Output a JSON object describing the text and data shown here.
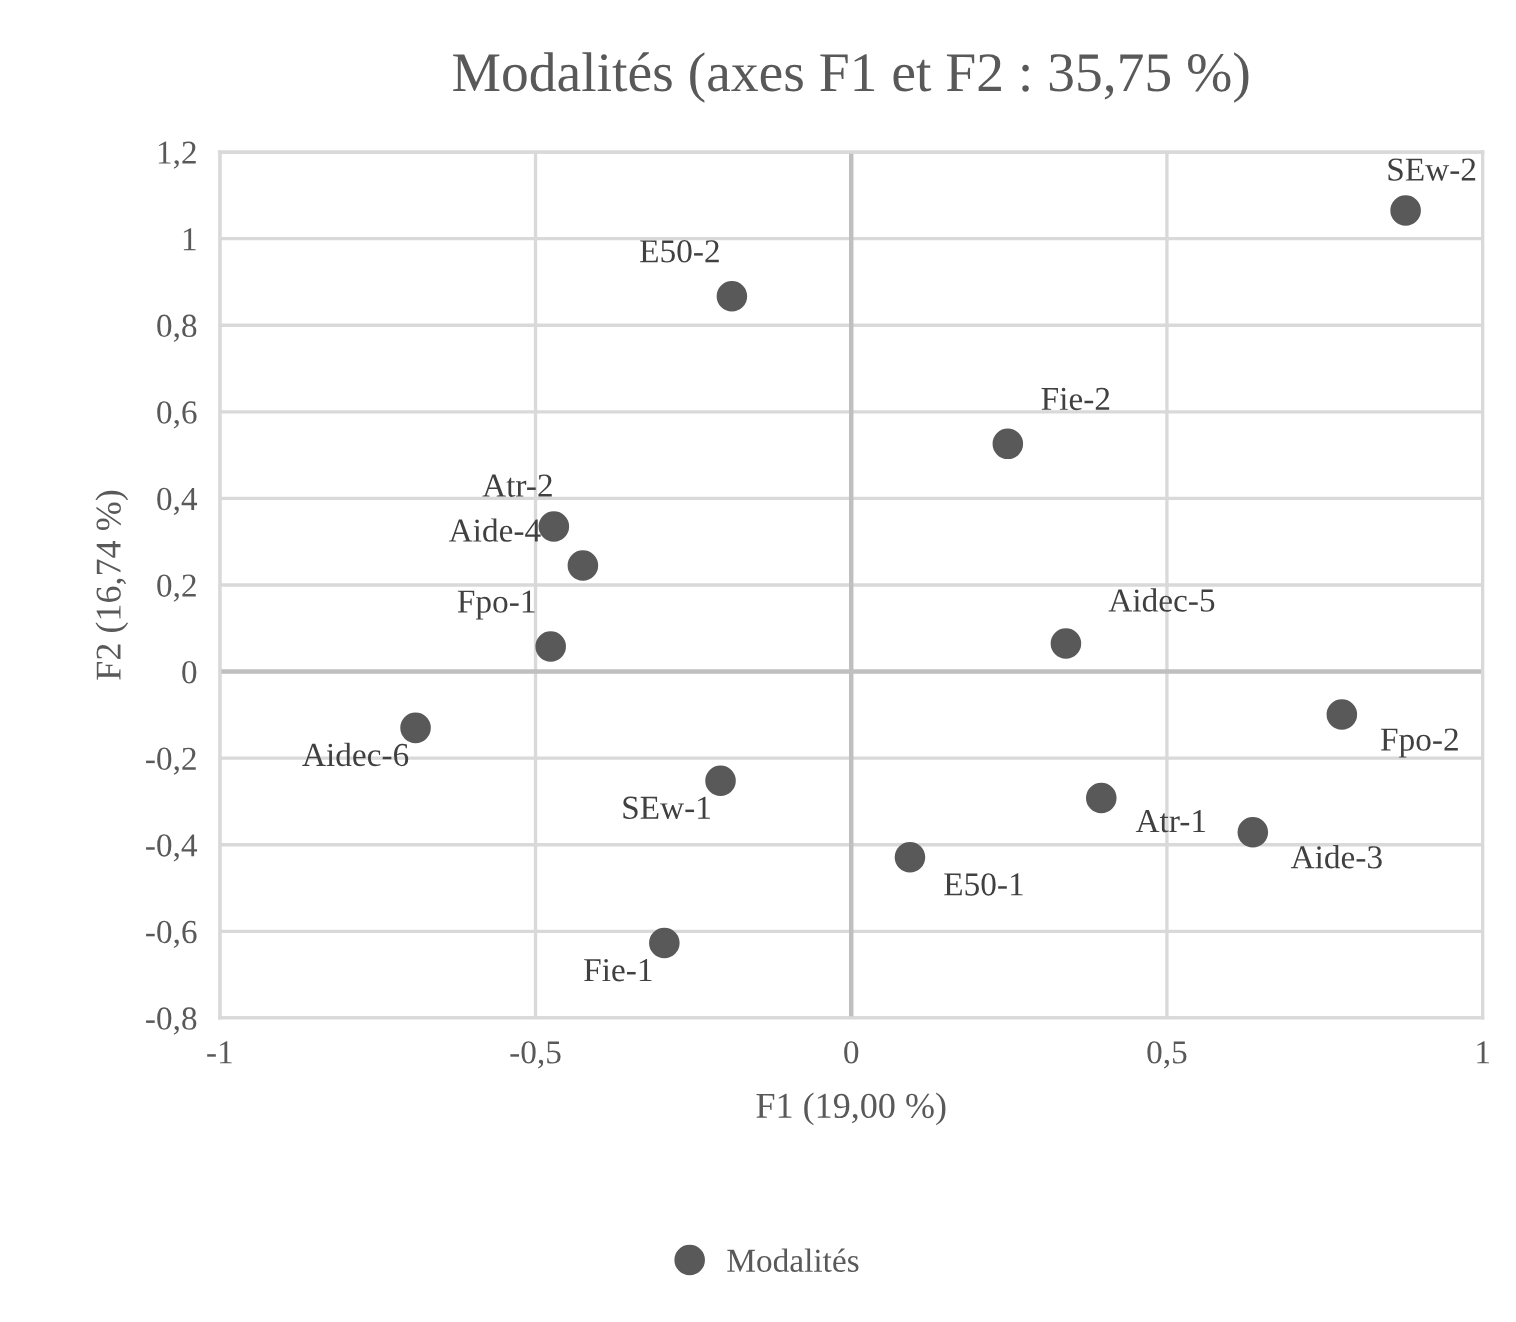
{
  "chart_data": {
    "type": "scatter",
    "title": "Modalités (axes F1 et F2 : 35,75 %)",
    "xlabel": "F1 (19,00 %)",
    "ylabel": "F2 (16,74 %)",
    "series": [
      {
        "name": "Modalités",
        "color": "#595959",
        "x": [
          0.878,
          -0.189,
          0.248,
          -0.471,
          -0.425,
          -0.476,
          0.34,
          -0.69,
          -0.207,
          -0.296,
          0.093,
          0.396,
          0.636,
          0.777
        ],
        "values": [
          1.065,
          0.867,
          0.526,
          0.335,
          0.245,
          0.058,
          0.065,
          -0.13,
          -0.252,
          -0.627,
          -0.429,
          -0.292,
          -0.371,
          -0.099
        ]
      }
    ],
    "annotations": [
      {
        "text": "SEw-2",
        "x": 0.878,
        "y": 1.065
      },
      {
        "text": "E50-2",
        "x": -0.189,
        "y": 0.867
      },
      {
        "text": "Fie-2",
        "x": 0.248,
        "y": 0.526
      },
      {
        "text": "Atr-2",
        "x": -0.471,
        "y": 0.335
      },
      {
        "text": "Aide-4",
        "x": -0.425,
        "y": 0.245
      },
      {
        "text": "Fpo-1",
        "x": -0.476,
        "y": 0.058
      },
      {
        "text": "Aidec-5",
        "x": 0.34,
        "y": 0.065
      },
      {
        "text": "Aidec-6",
        "x": -0.69,
        "y": -0.13
      },
      {
        "text": "SEw-1",
        "x": -0.207,
        "y": -0.252
      },
      {
        "text": "Fie-1",
        "x": -0.296,
        "y": -0.627
      },
      {
        "text": "E50-1",
        "x": 0.093,
        "y": -0.429
      },
      {
        "text": "Atr-1",
        "x": 0.396,
        "y": -0.292
      },
      {
        "text": "Aide-3",
        "x": 0.636,
        "y": -0.371
      },
      {
        "text": "Fpo-2",
        "x": 0.777,
        "y": -0.099
      }
    ],
    "xlim": [
      -1,
      1
    ],
    "xticks": [
      {
        "value": -1,
        "label": "-1"
      },
      {
        "value": -0.5,
        "label": "-0,5"
      },
      {
        "value": 0,
        "label": "0"
      },
      {
        "value": 0.5,
        "label": "0,5"
      },
      {
        "value": 1,
        "label": "1"
      }
    ],
    "ylim": [
      -0.8,
      1.2
    ],
    "yticks": [
      {
        "value": -0.8,
        "label": "-0,8"
      },
      {
        "value": -0.6,
        "label": "-0,6"
      },
      {
        "value": -0.4,
        "label": "-0,4"
      },
      {
        "value": -0.2,
        "label": "-0,2"
      },
      {
        "value": 0,
        "label": "0"
      },
      {
        "value": 0.2,
        "label": "0,2"
      },
      {
        "value": 0.4,
        "label": "0,4"
      },
      {
        "value": 0.6,
        "label": "0,6"
      },
      {
        "value": 0.8,
        "label": "0,8"
      },
      {
        "value": 1,
        "label": "1"
      },
      {
        "value": 1.2,
        "label": "1,2"
      }
    ],
    "grid": true,
    "legend": "bottom",
    "marker": "circle"
  }
}
